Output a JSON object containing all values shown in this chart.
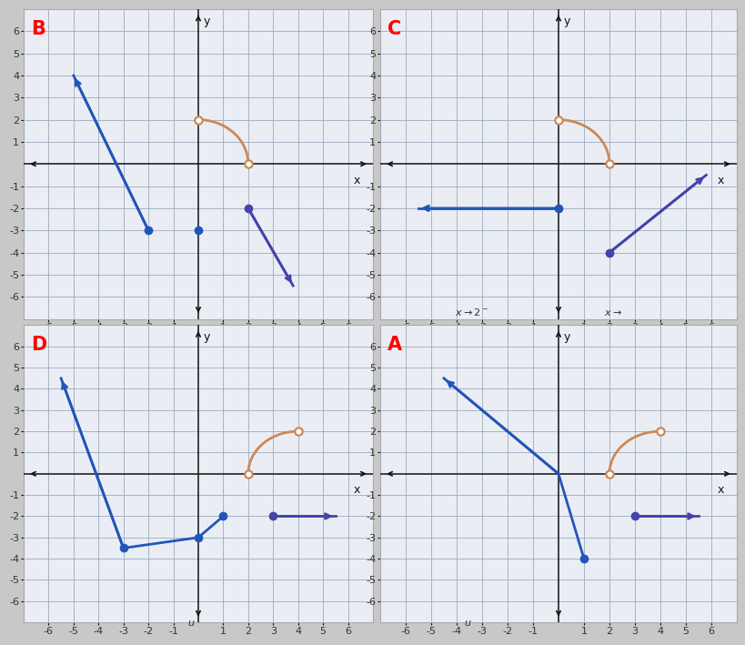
{
  "bg_color": "#c8c8c8",
  "panel_bg": "#eaeef4",
  "panel_border": "#888888",
  "grid_color": "#9aaabf",
  "axis_color": "#111111",
  "blue": "#2255bb",
  "purple": "#4444aa",
  "curve_color": "#cc8855",
  "xlim": [
    -7,
    7
  ],
  "ylim": [
    -7,
    7
  ],
  "xticks": [
    -6,
    -5,
    -4,
    -3,
    -2,
    -1,
    1,
    2,
    3,
    4,
    5,
    6
  ],
  "yticks": [
    -6,
    -5,
    -4,
    -3,
    -2,
    -1,
    1,
    2,
    3,
    4,
    5,
    6
  ],
  "tick_fs": 8,
  "panel_label_fs": 15,
  "lw": 2.0,
  "dot_ms": 6,
  "note_x2m": "x→2⁻",
  "note_xr": "x→"
}
